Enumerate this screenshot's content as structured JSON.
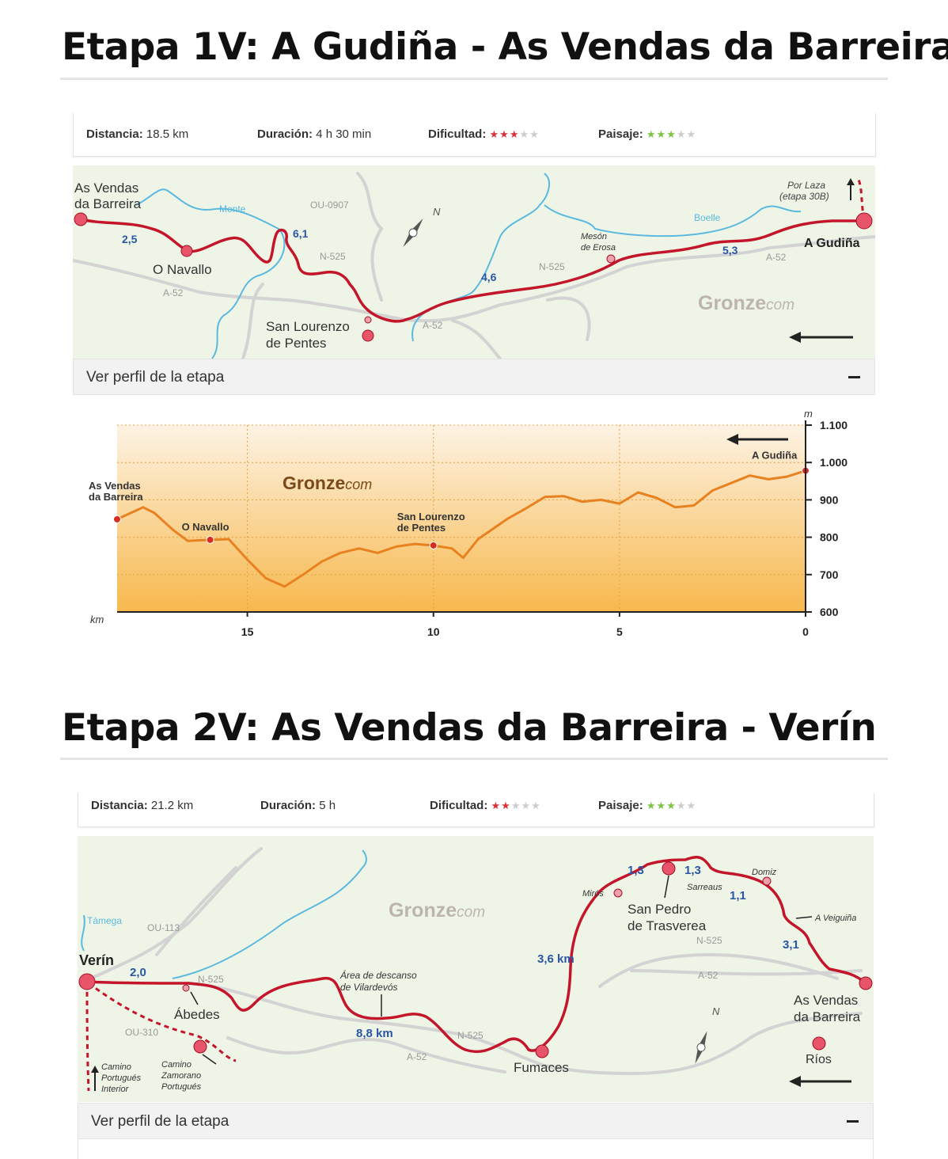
{
  "stage1": {
    "title": "Etapa 1V: A Gudiña - As Vendas da Barreira",
    "stats": {
      "distance_label": "Distancia:",
      "distance_value": "18.5 km",
      "duration_label": "Duración:",
      "duration_value": "4 h 30 min",
      "difficulty_label": "Dificultad:",
      "difficulty_stars": 3,
      "scenery_label": "Paisaje:",
      "scenery_stars": 3,
      "stars_total": 5
    },
    "map": {
      "places": {
        "start": "As Vendas\nda Barreira",
        "navallo": "O Navallo",
        "lourenzo": "San Lourenzo\nde Pentes",
        "meson": "Mesón\nde Erosa",
        "gudina": "A Gudiña",
        "laza": "Por Laza\n(etapa 30B)"
      },
      "rivers": [
        "Mente",
        "Boelle"
      ],
      "roads": [
        "OU-0907",
        "N-525",
        "A-52",
        "N-525",
        "A-52",
        "A-52"
      ],
      "distances": [
        "2,5",
        "6,1",
        "4,6",
        "5,3"
      ],
      "brand": "Gronze",
      "brand_suffix": "com",
      "compass": "N"
    },
    "profile_toggle": "Ver perfil de la etapa",
    "chart_data": {
      "type": "area",
      "xlabel": "km",
      "ylabel": "m",
      "xlim": [
        18.5,
        0
      ],
      "ylim": [
        600,
        1100
      ],
      "x_ticks": [
        15,
        10,
        5,
        0
      ],
      "y_ticks": [
        600,
        700,
        800,
        900,
        "1.000",
        "1.100"
      ],
      "x": [
        18.5,
        17.8,
        17.5,
        17.0,
        16.6,
        16.0,
        15.5,
        15.0,
        14.5,
        14.0,
        13.5,
        13.0,
        12.5,
        12.0,
        11.5,
        11.0,
        10.5,
        10.0,
        9.5,
        9.2,
        8.8,
        8.0,
        7.5,
        7.0,
        6.5,
        6.0,
        5.5,
        5.0,
        4.5,
        4.0,
        3.5,
        3.0,
        2.5,
        2.0,
        1.5,
        1.0,
        0.5,
        0.0
      ],
      "y": [
        848,
        880,
        865,
        820,
        790,
        793,
        795,
        740,
        690,
        668,
        700,
        735,
        758,
        770,
        758,
        775,
        782,
        778,
        770,
        745,
        795,
        850,
        878,
        908,
        910,
        895,
        900,
        890,
        920,
        905,
        880,
        885,
        925,
        945,
        965,
        955,
        962,
        978
      ],
      "markers": [
        {
          "label": "As Vendas\nda Barreira",
          "x": 18.5,
          "y": 848
        },
        {
          "label": "O Navallo",
          "x": 16.0,
          "y": 793
        },
        {
          "label": "San Lourenzo\nde Pentes",
          "x": 10.0,
          "y": 778
        },
        {
          "label": "A Gudiña",
          "x": 0.0,
          "y": 978
        }
      ],
      "brand": "Gronze",
      "brand_suffix": "com"
    }
  },
  "stage2": {
    "title": "Etapa 2V: As Vendas da Barreira - Verín",
    "stats": {
      "distance_label": "Distancia:",
      "distance_value": "21.2 km",
      "duration_label": "Duración:",
      "duration_value": "5 h",
      "difficulty_label": "Dificultad:",
      "difficulty_stars": 2,
      "scenery_label": "Paisaje:",
      "scenery_stars": 3,
      "stars_total": 5
    },
    "map": {
      "places": {
        "verin": "Verín",
        "abedes": "Ábedes",
        "area": "Área de descanso\nde Vilardevós",
        "fumaces": "Fumaces",
        "miros": "Mirós",
        "sanpedro": "San Pedro\nde Trasverea",
        "sarreaus": "Sarreaus",
        "domiz": "Domiz",
        "veiguina": "A Veiguiña",
        "vendas": "As Vendas\nda Barreira",
        "rios": "Ríos",
        "camino_interior": "Camino\nPortugués\nInterior",
        "camino_zamorano": "Camino\nZamorano\nPortugués"
      },
      "rivers": [
        "Támega"
      ],
      "roads": [
        "OU-113",
        "N-525",
        "OU-310",
        "N-525",
        "A-52",
        "N-525",
        "A-52"
      ],
      "distances": [
        "2,0",
        "8,8 km",
        "3,6 km",
        "1,3",
        "1,3",
        "1,1",
        "3,1"
      ],
      "brand": "Gronze",
      "brand_suffix": "com",
      "compass": "N"
    },
    "profile_toggle": "Ver perfil de la etapa"
  },
  "colors": {
    "route": "#c4162a",
    "river": "#5bb8de",
    "road": "#d3d3d3",
    "map_bg": "#eef5e6",
    "distance_text": "#2b56a6",
    "profile_line": "#e8811f",
    "star_red": "#d9303a",
    "star_green": "#7cc243",
    "star_off": "#cccccc"
  }
}
